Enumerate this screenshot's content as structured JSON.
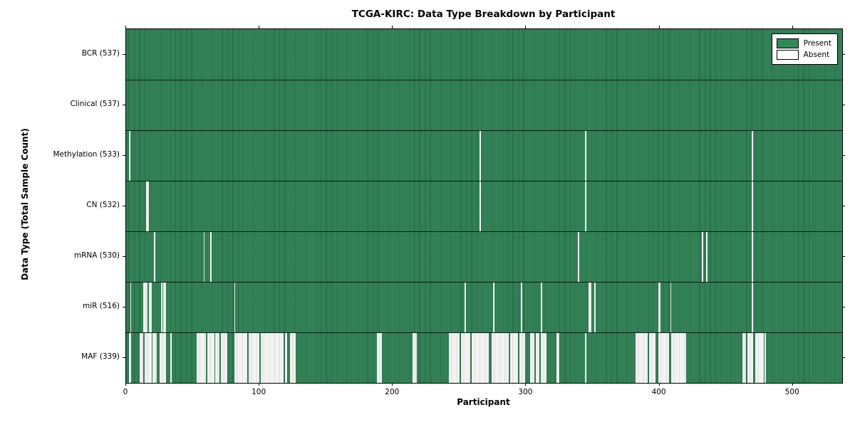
{
  "chart_data": {
    "type": "heatmap",
    "title": "TCGA-KIRC: Data Type Breakdown by Participant",
    "xlabel": "Participant",
    "ylabel": "Data Type (Total Sample Count)",
    "x_range": [
      0,
      537
    ],
    "x_ticks": [
      0,
      100,
      200,
      300,
      400,
      500
    ],
    "grid": false,
    "legend_position": "upper right",
    "present_color": "#2e8b57",
    "absent_color": "#ffffff",
    "legend": [
      {
        "label": "Present",
        "color": "#2e8b57"
      },
      {
        "label": "Absent",
        "color": "#ffffff"
      }
    ],
    "rows": [
      {
        "name": "BCR",
        "label": "BCR (537)",
        "total": 537,
        "absent_ranges": []
      },
      {
        "name": "Clinical",
        "label": "Clinical (537)",
        "total": 537,
        "absent_ranges": []
      },
      {
        "name": "Methylation",
        "label": "Methylation (533)",
        "total": 533,
        "absent_ranges": [
          [
            2,
            2
          ],
          [
            265,
            265
          ],
          [
            344,
            344
          ],
          [
            469,
            469
          ]
        ]
      },
      {
        "name": "CN",
        "label": "CN (532)",
        "total": 532,
        "absent_ranges": [
          [
            15,
            16
          ],
          [
            265,
            265
          ],
          [
            344,
            344
          ],
          [
            469,
            469
          ]
        ]
      },
      {
        "name": "mRNA",
        "label": "mRNA (530)",
        "total": 530,
        "absent_ranges": [
          [
            21,
            21
          ],
          [
            58,
            58
          ],
          [
            63,
            63
          ],
          [
            339,
            339
          ],
          [
            432,
            432
          ],
          [
            435,
            435
          ],
          [
            469,
            469
          ]
        ]
      },
      {
        "name": "miR",
        "label": "miR (516)",
        "total": 516,
        "absent_ranges": [
          [
            3,
            3
          ],
          [
            13,
            15
          ],
          [
            17,
            18
          ],
          [
            26,
            26
          ],
          [
            28,
            29
          ],
          [
            81,
            81
          ],
          [
            254,
            254
          ],
          [
            275,
            275
          ],
          [
            296,
            296
          ],
          [
            311,
            311
          ],
          [
            347,
            348
          ],
          [
            351,
            351
          ],
          [
            399,
            400
          ],
          [
            408,
            408
          ],
          [
            469,
            469
          ]
        ]
      },
      {
        "name": "MAF",
        "label": "MAF (339)",
        "total": 339,
        "absent_ranges": [
          [
            2,
            3
          ],
          [
            10,
            12
          ],
          [
            14,
            18
          ],
          [
            20,
            22
          ],
          [
            25,
            29
          ],
          [
            33,
            33
          ],
          [
            53,
            59
          ],
          [
            61,
            65
          ],
          [
            67,
            69
          ],
          [
            71,
            75
          ],
          [
            81,
            90
          ],
          [
            92,
            99
          ],
          [
            101,
            117
          ],
          [
            119,
            120
          ],
          [
            123,
            126
          ],
          [
            188,
            191
          ],
          [
            215,
            217
          ],
          [
            242,
            249
          ],
          [
            251,
            257
          ],
          [
            259,
            271
          ],
          [
            274,
            286
          ],
          [
            288,
            293
          ],
          [
            295,
            298
          ],
          [
            303,
            305
          ],
          [
            307,
            309
          ],
          [
            311,
            314
          ],
          [
            323,
            324
          ],
          [
            344,
            344
          ],
          [
            382,
            390
          ],
          [
            392,
            396
          ],
          [
            399,
            406
          ],
          [
            409,
            419
          ],
          [
            462,
            464
          ],
          [
            466,
            469
          ],
          [
            472,
            477
          ],
          [
            479,
            479
          ]
        ]
      }
    ]
  }
}
